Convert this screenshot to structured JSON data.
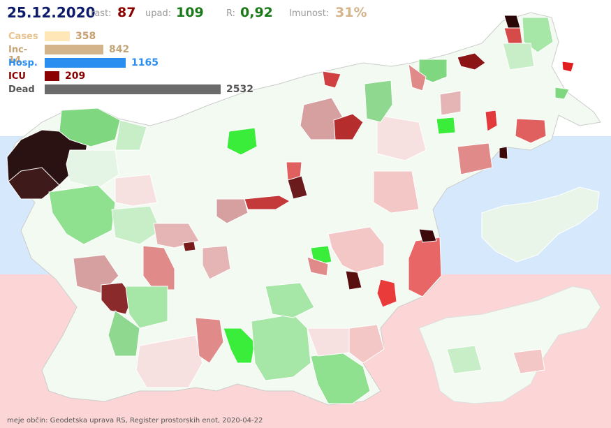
{
  "header": {
    "date": "25.12.2020",
    "rast_label": "rast:",
    "rast_value": "87",
    "upad_label": "upad:",
    "upad_value": "109",
    "r_label": "R:",
    "r_value": "0,92",
    "imunost_label": "Imunost:",
    "imunost_value": "31%"
  },
  "stats": [
    {
      "label": "Cases",
      "value": "358",
      "amount": 358,
      "color": "#ffe7b8",
      "label_color": "#e8c28c",
      "value_color": "#c8a070"
    },
    {
      "label": "Inc-14",
      "value": "842",
      "amount": 842,
      "color": "#d4b48a",
      "label_color": "#c5a478",
      "value_color": "#c5a478"
    },
    {
      "label": "Hosp.",
      "value": "1165",
      "amount": 1165,
      "color": "#2a8ef0",
      "label_color": "#2a8ef0",
      "value_color": "#2a8ef0"
    },
    {
      "label": "ICU",
      "value": "209",
      "amount": 209,
      "color": "#8b0000",
      "label_color": "#8b0000",
      "value_color": "#8b0000"
    },
    {
      "label": "Dead",
      "value": "2532",
      "amount": 2532,
      "color": "#6b6b6b",
      "label_color": "#555555",
      "value_color": "#555555"
    }
  ],
  "source": "meje občin: Geodetska uprava RS, Register prostorskih enot, 2020-04-22",
  "colors": {
    "band_top": "#ffffff",
    "band_mid": "#d6e8fb",
    "band_bottom": "#fcd6d6",
    "header_date": "#0d1a6b",
    "rast": "#8b0000",
    "upad": "#1a7a1a",
    "r": "#1a7a1a",
    "imunost": "#d4b48a",
    "border": "#cccccc"
  }
}
